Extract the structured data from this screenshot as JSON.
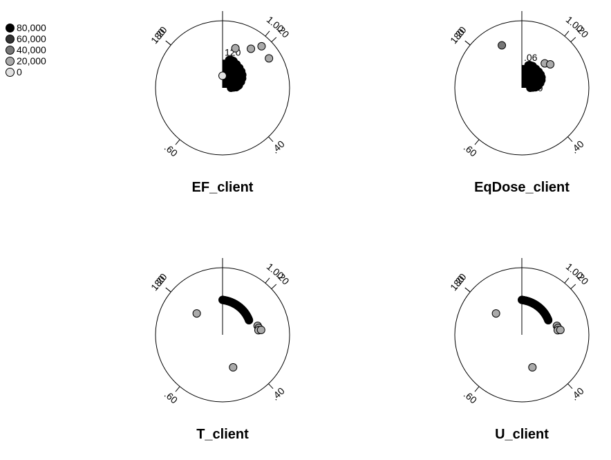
{
  "legend": {
    "items": [
      {
        "label": "80,000",
        "color": "#000000"
      },
      {
        "label": "60,000",
        "color": "#333333"
      },
      {
        "label": "40,000",
        "color": "#777777"
      },
      {
        "label": "20,000",
        "color": "#aaaaaa"
      },
      {
        "label": "0",
        "color": "#e2e2e2"
      }
    ]
  },
  "chart_data": [
    {
      "type": "scatter",
      "coordinate_system": "polar",
      "title": "EF_client",
      "angular_ticks": [
        "1.20",
        ".20",
        ".40",
        ".60",
        ".80",
        "1.00"
      ],
      "radial_ticks": [
        "120",
        "0"
      ],
      "spread": {
        "type": "dense",
        "max_extent": 0.42,
        "label_max": "120",
        "label_min": "0"
      },
      "points": [
        {
          "theta": 0.0,
          "r": 0.18,
          "level": 0
        },
        {
          "theta": 0.05,
          "r": 0.62,
          "level": 1
        },
        {
          "theta": 0.1,
          "r": 0.72,
          "level": 1
        },
        {
          "theta": 0.12,
          "r": 0.85,
          "level": 1
        },
        {
          "theta": 0.16,
          "r": 0.82,
          "level": 1
        }
      ]
    },
    {
      "type": "scatter",
      "coordinate_system": "polar",
      "title": "EqDose_client",
      "angular_ticks": [
        "1.20",
        ".20",
        ".40",
        ".60",
        ".80",
        "1.00"
      ],
      "radial_ticks": [
        ".06",
        ".00"
      ],
      "spread": {
        "type": "dense",
        "max_extent": 0.34,
        "label_max": ".06",
        "label_min": ".00"
      },
      "points": [
        {
          "theta": 0.93,
          "r": 0.7,
          "level": 2
        },
        {
          "theta": 0.12,
          "r": 0.5,
          "level": 1
        },
        {
          "theta": 0.14,
          "r": 0.55,
          "level": 1
        }
      ]
    },
    {
      "type": "scatter",
      "coordinate_system": "polar",
      "title": "T_client",
      "angular_ticks": [
        "1.20",
        ".20",
        ".40",
        ".60",
        ".80",
        "1.00"
      ],
      "radial_ticks": [],
      "spread": {
        "type": "arc",
        "theta_start": 0.0,
        "theta_end": 0.17,
        "r_outer": 0.52,
        "r_inner": 0.45
      },
      "points": [
        {
          "theta": 0.21,
          "r": 0.54,
          "level": 1
        },
        {
          "theta": 0.22,
          "r": 0.55,
          "level": 1
        },
        {
          "theta": 0.23,
          "r": 0.54,
          "level": 1
        },
        {
          "theta": 0.23,
          "r": 0.58,
          "level": 1
        },
        {
          "theta": 0.45,
          "r": 0.51,
          "level": 1
        },
        {
          "theta": 0.86,
          "r": 0.5,
          "level": 1
        }
      ]
    },
    {
      "type": "scatter",
      "coordinate_system": "polar",
      "title": "U_client",
      "angular_ticks": [
        "1.20",
        ".20",
        ".40",
        ".60",
        ".80",
        "1.00"
      ],
      "radial_ticks": [],
      "spread": {
        "type": "arc",
        "theta_start": 0.0,
        "theta_end": 0.17,
        "r_outer": 0.52,
        "r_inner": 0.45
      },
      "points": [
        {
          "theta": 0.21,
          "r": 0.54,
          "level": 1
        },
        {
          "theta": 0.22,
          "r": 0.55,
          "level": 1
        },
        {
          "theta": 0.23,
          "r": 0.54,
          "level": 1
        },
        {
          "theta": 0.23,
          "r": 0.58,
          "level": 1
        },
        {
          "theta": 0.45,
          "r": 0.51,
          "level": 1
        },
        {
          "theta": 0.86,
          "r": 0.5,
          "level": 1
        }
      ]
    }
  ]
}
